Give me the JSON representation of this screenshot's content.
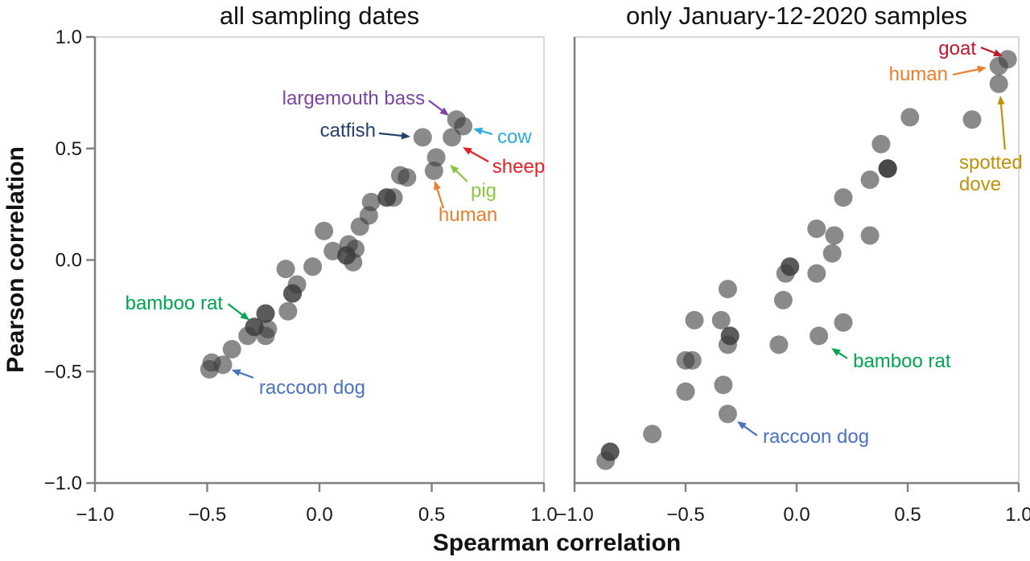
{
  "figure": {
    "xlabel": "Spearman correlation",
    "ylabel": "Pearson correlation"
  },
  "chart_data": [
    {
      "id": "all-dates",
      "type": "scatter",
      "title": "all sampling dates",
      "xlabel": "Spearman correlation",
      "ylabel": "Pearson correlation",
      "xlim": [
        -1,
        1
      ],
      "ylim": [
        -1,
        1
      ],
      "grid": false,
      "point_color": "#3c3c3c",
      "point_opacity": 0.6,
      "xticks": [
        {
          "v": -1.0,
          "label": "−1.0"
        },
        {
          "v": -0.5,
          "label": "−0.5"
        },
        {
          "v": 0.0,
          "label": "0.0"
        },
        {
          "v": 0.5,
          "label": "0.5"
        },
        {
          "v": 1.0,
          "label": "1.0"
        }
      ],
      "yticks": [
        {
          "v": 1.0,
          "label": "1.0"
        },
        {
          "v": 0.5,
          "label": "0.5"
        },
        {
          "v": 0.0,
          "label": "0.0"
        },
        {
          "v": -0.5,
          "label": "−0.5"
        },
        {
          "v": -1.0,
          "label": "−1.0"
        }
      ],
      "points": [
        {
          "x": 0.61,
          "y": 0.63,
          "label": "largemouth bass"
        },
        {
          "x": 0.64,
          "y": 0.6,
          "label": "cow"
        },
        {
          "x": 0.46,
          "y": 0.55,
          "label": "catfish"
        },
        {
          "x": 0.59,
          "y": 0.55,
          "label": "sheep"
        },
        {
          "x": 0.52,
          "y": 0.46,
          "label": "pig"
        },
        {
          "x": 0.51,
          "y": 0.4,
          "label": "human"
        },
        {
          "x": 0.36,
          "y": 0.38
        },
        {
          "x": 0.39,
          "y": 0.37
        },
        {
          "x": 0.3,
          "y": 0.28,
          "n": 2
        },
        {
          "x": 0.33,
          "y": 0.28
        },
        {
          "x": 0.23,
          "y": 0.26
        },
        {
          "x": 0.22,
          "y": 0.2
        },
        {
          "x": 0.18,
          "y": 0.15
        },
        {
          "x": 0.13,
          "y": 0.07
        },
        {
          "x": 0.02,
          "y": 0.13
        },
        {
          "x": 0.06,
          "y": 0.04
        },
        {
          "x": 0.12,
          "y": 0.02,
          "n": 2
        },
        {
          "x": 0.16,
          "y": 0.05
        },
        {
          "x": 0.15,
          "y": -0.01
        },
        {
          "x": -0.15,
          "y": -0.04
        },
        {
          "x": -0.03,
          "y": -0.03
        },
        {
          "x": -0.1,
          "y": -0.11
        },
        {
          "x": -0.12,
          "y": -0.15,
          "n": 2
        },
        {
          "x": -0.14,
          "y": -0.23
        },
        {
          "x": -0.24,
          "y": -0.24,
          "n": 2
        },
        {
          "x": -0.29,
          "y": -0.3,
          "label": "bamboo rat",
          "n": 2
        },
        {
          "x": -0.23,
          "y": -0.31
        },
        {
          "x": -0.24,
          "y": -0.34
        },
        {
          "x": -0.32,
          "y": -0.34
        },
        {
          "x": -0.39,
          "y": -0.4
        },
        {
          "x": -0.48,
          "y": -0.46
        },
        {
          "x": -0.43,
          "y": -0.47,
          "label": "raccoon dog"
        },
        {
          "x": -0.49,
          "y": -0.49
        }
      ],
      "annotations": [
        {
          "label": "largemouth bass",
          "lines": [
            "largemouth bass"
          ],
          "color": "#7d44a5",
          "anchor": "end",
          "tx": 0.47,
          "ty": 0.698,
          "arrow": [
            0.487,
            0.715,
            0.577,
            0.647
          ]
        },
        {
          "label": "catfish",
          "lines": [
            "catfish"
          ],
          "color": "#24406f",
          "anchor": "end",
          "tx": 0.251,
          "ty": 0.553,
          "arrow": [
            0.265,
            0.568,
            0.405,
            0.553
          ]
        },
        {
          "label": "cow",
          "lines": [
            "cow"
          ],
          "color": "#29abe2",
          "anchor": "start",
          "tx": 0.792,
          "ty": 0.524,
          "arrow": [
            0.77,
            0.564,
            0.685,
            0.589
          ]
        },
        {
          "label": "sheep",
          "lines": [
            "sheep"
          ],
          "color": "#e32226",
          "anchor": "start",
          "tx": 0.77,
          "ty": 0.391,
          "arrow": [
            0.753,
            0.441,
            0.638,
            0.506
          ]
        },
        {
          "label": "pig",
          "lines": [
            "pig"
          ],
          "color": "#8cc63f",
          "anchor": "start",
          "tx": 0.674,
          "ty": 0.283,
          "arrow": [
            0.659,
            0.351,
            0.581,
            0.427
          ]
        },
        {
          "label": "human",
          "lines": [
            "human"
          ],
          "color": "#ea7e2e",
          "anchor": "start",
          "tx": 0.53,
          "ty": 0.175,
          "arrow": [
            0.552,
            0.232,
            0.513,
            0.355
          ]
        },
        {
          "label": "bamboo rat",
          "lines": [
            "bamboo rat"
          ],
          "color": "#00a551",
          "anchor": "end",
          "tx": -0.43,
          "ty": -0.222,
          "arrow": [
            -0.407,
            -0.197,
            -0.312,
            -0.27
          ]
        },
        {
          "label": "raccoon dog",
          "lines": [
            "raccoon dog"
          ],
          "color": "#4a72bf",
          "anchor": "start",
          "tx": -0.269,
          "ty": -0.6,
          "arrow": [
            -0.294,
            -0.528,
            -0.392,
            -0.492
          ]
        }
      ]
    },
    {
      "id": "jan-12-2020",
      "type": "scatter",
      "title": "only January-12-2020 samples",
      "xlabel": "Spearman correlation",
      "ylabel": "Pearson correlation",
      "xlim": [
        -1,
        1
      ],
      "ylim": [
        -1,
        1
      ],
      "grid": false,
      "point_color": "#3c3c3c",
      "point_opacity": 0.6,
      "xticks": [
        {
          "v": -1.0,
          "label": "−1.0"
        },
        {
          "v": -0.5,
          "label": "−0.5"
        },
        {
          "v": 0.0,
          "label": "0.0"
        },
        {
          "v": 0.5,
          "label": "0.5"
        },
        {
          "v": 1.0,
          "label": "1.0"
        }
      ],
      "yticks": [],
      "points": [
        {
          "x": 0.95,
          "y": 0.9,
          "label": "goat"
        },
        {
          "x": 0.91,
          "y": 0.87,
          "label": "human"
        },
        {
          "x": 0.91,
          "y": 0.79,
          "label": "spotted dove"
        },
        {
          "x": 0.79,
          "y": 0.63
        },
        {
          "x": 0.51,
          "y": 0.64
        },
        {
          "x": 0.38,
          "y": 0.52
        },
        {
          "x": 0.41,
          "y": 0.41,
          "n": 3
        },
        {
          "x": 0.33,
          "y": 0.36
        },
        {
          "x": 0.21,
          "y": 0.28
        },
        {
          "x": 0.09,
          "y": 0.14
        },
        {
          "x": 0.17,
          "y": 0.11
        },
        {
          "x": 0.33,
          "y": 0.11
        },
        {
          "x": 0.16,
          "y": 0.03
        },
        {
          "x": -0.03,
          "y": -0.03,
          "n": 2
        },
        {
          "x": -0.05,
          "y": -0.06
        },
        {
          "x": 0.09,
          "y": -0.06
        },
        {
          "x": -0.06,
          "y": -0.18
        },
        {
          "x": 0.21,
          "y": -0.28
        },
        {
          "x": 0.1,
          "y": -0.34,
          "label": "bamboo rat"
        },
        {
          "x": -0.08,
          "y": -0.38
        },
        {
          "x": -0.31,
          "y": -0.13
        },
        {
          "x": -0.46,
          "y": -0.27
        },
        {
          "x": -0.34,
          "y": -0.27
        },
        {
          "x": -0.3,
          "y": -0.34,
          "n": 2
        },
        {
          "x": -0.31,
          "y": -0.38
        },
        {
          "x": -0.5,
          "y": -0.45
        },
        {
          "x": -0.47,
          "y": -0.45
        },
        {
          "x": -0.5,
          "y": -0.59
        },
        {
          "x": -0.33,
          "y": -0.56
        },
        {
          "x": -0.31,
          "y": -0.69,
          "label": "raccoon dog"
        },
        {
          "x": -0.65,
          "y": -0.78
        },
        {
          "x": -0.84,
          "y": -0.86,
          "n": 2
        },
        {
          "x": -0.86,
          "y": -0.9
        }
      ],
      "annotations": [
        {
          "label": "goat",
          "lines": [
            "goat"
          ],
          "color": "#c0182b",
          "anchor": "end",
          "tx": 0.808,
          "ty": 0.921,
          "arrow": [
            0.83,
            0.953,
            0.928,
            0.914
          ]
        },
        {
          "label": "human",
          "lines": [
            "human"
          ],
          "color": "#ea7e2e",
          "anchor": "end",
          "tx": 0.681,
          "ty": 0.805,
          "arrow": [
            0.703,
            0.831,
            0.855,
            0.863
          ]
        },
        {
          "label": "spotted dove",
          "lines": [
            "spotted",
            "dove"
          ],
          "color": "#bf9209",
          "anchor": "start",
          "tx": 0.732,
          "ty": 0.409,
          "arrow": [
            0.938,
            0.495,
            0.917,
            0.737
          ]
        },
        {
          "label": "bamboo rat",
          "lines": [
            "bamboo rat"
          ],
          "color": "#00a551",
          "anchor": "start",
          "tx": 0.254,
          "ty": -0.481,
          "arrow": [
            0.228,
            -0.441,
            0.156,
            -0.395
          ]
        },
        {
          "label": "raccoon dog",
          "lines": [
            "raccoon dog"
          ],
          "color": "#4a72bf",
          "anchor": "start",
          "tx": -0.152,
          "ty": -0.82,
          "arrow": [
            -0.178,
            -0.787,
            -0.268,
            -0.723
          ]
        }
      ]
    }
  ]
}
